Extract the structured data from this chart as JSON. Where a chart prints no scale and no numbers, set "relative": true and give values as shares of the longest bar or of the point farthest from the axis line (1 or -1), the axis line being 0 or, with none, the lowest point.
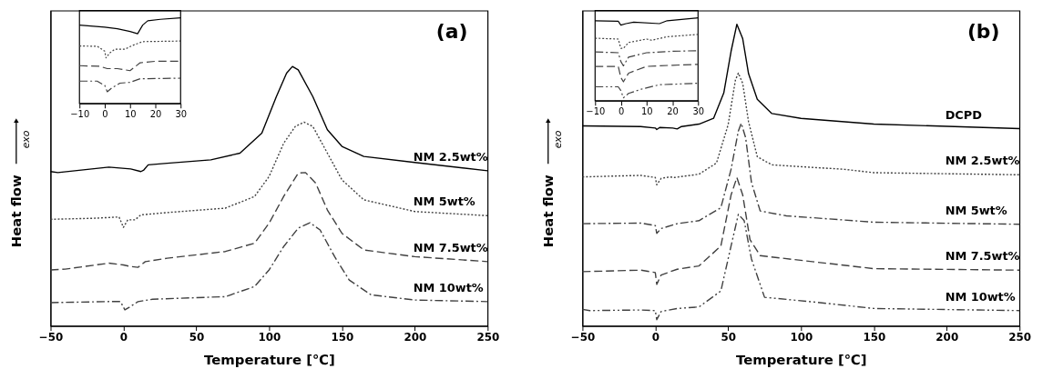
{
  "chart_data": [
    {
      "type": "line",
      "relative": true,
      "xlabel": "Temperature [℃]",
      "ylabel": "Heat flow",
      "xlim": [
        -50,
        250
      ],
      "xticks": [
        -50,
        0,
        50,
        100,
        150,
        200,
        250
      ],
      "annotations": [
        "(a)",
        "exo"
      ],
      "series": [
        {
          "name": "NM 2.5wt%",
          "color": "#000000",
          "line_style": "solid",
          "x": [
            -50,
            -45,
            -10,
            5,
            12,
            14,
            17,
            30,
            60,
            80,
            95,
            105,
            112,
            116,
            120,
            130,
            140,
            150,
            165,
            200,
            250
          ],
          "values": [
            0.595,
            0.591,
            0.612,
            0.605,
            0.595,
            0.601,
            0.621,
            0.627,
            0.64,
            0.666,
            0.743,
            0.884,
            0.974,
            1.0,
            0.987,
            0.884,
            0.756,
            0.692,
            0.653,
            0.63,
            0.598
          ]
        },
        {
          "name": "NM 5wt%",
          "color": "#404040",
          "line_style": "dotted",
          "x": [
            -50,
            -20,
            -3,
            0,
            3,
            8,
            12,
            30,
            70,
            90,
            100,
            110,
            118,
            124,
            130,
            140,
            150,
            165,
            200,
            250
          ],
          "values": [
            0.411,
            0.415,
            0.42,
            0.38,
            0.409,
            0.409,
            0.428,
            0.437,
            0.454,
            0.499,
            0.576,
            0.704,
            0.769,
            0.785,
            0.769,
            0.666,
            0.563,
            0.486,
            0.441,
            0.425
          ]
        },
        {
          "name": "NM 7.5wt%",
          "color": "#404040",
          "line_style": "dashed",
          "x": [
            -50,
            -40,
            -10,
            0,
            5,
            10,
            15,
            30,
            70,
            90,
            100,
            110,
            120,
            125,
            132,
            140,
            150,
            165,
            200,
            250
          ],
          "values": [
            0.216,
            0.219,
            0.242,
            0.235,
            0.229,
            0.226,
            0.248,
            0.261,
            0.287,
            0.319,
            0.396,
            0.499,
            0.589,
            0.591,
            0.55,
            0.447,
            0.357,
            0.293,
            0.267,
            0.248
          ]
        },
        {
          "name": "NM 10wt%",
          "color": "#404040",
          "line_style": "dashdot",
          "x": [
            -50,
            -10,
            -2,
            1,
            4,
            10,
            20,
            70,
            90,
            100,
            110,
            120,
            128,
            135,
            145,
            155,
            170,
            200,
            250
          ],
          "values": [
            0.09,
            0.094,
            0.094,
            0.062,
            0.072,
            0.094,
            0.103,
            0.113,
            0.152,
            0.216,
            0.306,
            0.377,
            0.398,
            0.37,
            0.267,
            0.177,
            0.12,
            0.1,
            0.094
          ]
        }
      ]
    },
    {
      "type": "line",
      "relative": true,
      "xlim": [
        -10,
        30
      ],
      "xticks": [
        -10,
        0,
        10,
        20,
        30
      ],
      "series": [
        {
          "color": "#000000",
          "line_style": "solid",
          "x": [
            -10,
            0,
            5,
            10,
            13,
            15,
            17,
            22,
            30
          ],
          "values": [
            0.915,
            0.892,
            0.872,
            0.841,
            0.814,
            0.915,
            0.966,
            0.983,
            1.0
          ]
        },
        {
          "color": "#404040",
          "line_style": "dotted",
          "x": [
            -10,
            -3,
            0,
            0.5,
            2,
            4,
            8,
            11,
            15,
            30
          ],
          "values": [
            0.671,
            0.668,
            0.61,
            0.532,
            0.59,
            0.634,
            0.634,
            0.678,
            0.722,
            0.729
          ]
        },
        {
          "color": "#404040",
          "line_style": "dashed",
          "x": [
            -10,
            -2,
            1,
            5,
            10,
            14,
            20,
            30
          ],
          "values": [
            0.441,
            0.434,
            0.407,
            0.407,
            0.383,
            0.475,
            0.492,
            0.492
          ]
        },
        {
          "color": "#404040",
          "line_style": "dashdot",
          "x": [
            -10,
            -3,
            0,
            1,
            3,
            6,
            10,
            14,
            30
          ],
          "values": [
            0.261,
            0.261,
            0.21,
            0.136,
            0.186,
            0.237,
            0.247,
            0.288,
            0.295
          ]
        }
      ]
    },
    {
      "type": "line",
      "relative": true,
      "xlabel": "Temperature [℃]",
      "ylabel": "Heat flow",
      "xlim": [
        -50,
        250
      ],
      "xticks": [
        -50,
        0,
        50,
        100,
        150,
        200,
        250
      ],
      "annotations": [
        "(b)",
        "exo"
      ],
      "series": [
        {
          "name": "DCPD",
          "color": "#000000",
          "line_style": "solid",
          "x": [
            -50,
            -10,
            0,
            1,
            3,
            12,
            15,
            18,
            30,
            40,
            47,
            52,
            56,
            60,
            64,
            70,
            80,
            100,
            150,
            250
          ],
          "values": [
            0.663,
            0.661,
            0.656,
            0.651,
            0.658,
            0.656,
            0.653,
            0.661,
            0.669,
            0.688,
            0.772,
            0.91,
            1.0,
            0.952,
            0.836,
            0.751,
            0.704,
            0.688,
            0.669,
            0.654
          ]
        },
        {
          "name": "NM 2.5wt%",
          "color": "#404040",
          "line_style": "dotted",
          "x": [
            -50,
            -10,
            0,
            1,
            4,
            10,
            13,
            30,
            42,
            50,
            55,
            57,
            60,
            64,
            70,
            80,
            130,
            150,
            250
          ],
          "values": [
            0.494,
            0.499,
            0.492,
            0.468,
            0.489,
            0.494,
            0.492,
            0.503,
            0.54,
            0.667,
            0.815,
            0.838,
            0.804,
            0.677,
            0.561,
            0.534,
            0.519,
            0.508,
            0.501
          ]
        },
        {
          "name": "NM 5wt%",
          "color": "#404040",
          "line_style": "dashdot",
          "x": [
            -50,
            -10,
            0,
            1,
            4,
            15,
            30,
            45,
            52,
            57,
            59,
            62,
            66,
            72,
            90,
            150,
            250
          ],
          "values": [
            0.339,
            0.341,
            0.333,
            0.307,
            0.323,
            0.339,
            0.349,
            0.392,
            0.519,
            0.646,
            0.672,
            0.624,
            0.476,
            0.381,
            0.365,
            0.344,
            0.337
          ]
        },
        {
          "name": "NM 7.5wt%",
          "color": "#404040",
          "line_style": "dashed",
          "x": [
            -50,
            -10,
            0,
            1,
            4,
            15,
            30,
            45,
            52,
            56,
            60,
            65,
            72,
            110,
            150,
            250
          ],
          "values": [
            0.18,
            0.185,
            0.177,
            0.138,
            0.169,
            0.188,
            0.199,
            0.265,
            0.434,
            0.492,
            0.434,
            0.286,
            0.233,
            0.212,
            0.19,
            0.185
          ]
        },
        {
          "name": "NM 10wt%",
          "color": "#404040",
          "line_style": "dashdotdot",
          "x": [
            -50,
            -45,
            -10,
            0,
            1,
            4,
            15,
            30,
            45,
            52,
            57,
            61,
            66,
            75,
            110,
            150,
            250
          ],
          "values": [
            0.055,
            0.051,
            0.053,
            0.051,
            0.021,
            0.048,
            0.058,
            0.063,
            0.116,
            0.265,
            0.37,
            0.349,
            0.222,
            0.095,
            0.079,
            0.058,
            0.051
          ]
        }
      ]
    },
    {
      "type": "line",
      "relative": true,
      "xlim": [
        -10,
        30
      ],
      "xticks": [
        -10,
        0,
        10,
        20,
        30
      ],
      "series": [
        {
          "color": "#000000",
          "line_style": "solid",
          "x": [
            -10,
            -1,
            0,
            2,
            5,
            15,
            18,
            30
          ],
          "values": [
            0.965,
            0.958,
            0.912,
            0.93,
            0.947,
            0.93,
            0.965,
            1.0
          ]
        },
        {
          "color": "#404040",
          "line_style": "dotted",
          "x": [
            -10,
            -1,
            0,
            1,
            3,
            10,
            12,
            18,
            30
          ],
          "values": [
            0.754,
            0.744,
            0.632,
            0.632,
            0.702,
            0.744,
            0.73,
            0.772,
            0.8
          ]
        },
        {
          "color": "#404040",
          "line_style": "dashdot",
          "x": [
            -10,
            -1,
            0,
            1,
            3,
            10,
            20,
            30
          ],
          "values": [
            0.589,
            0.579,
            0.474,
            0.421,
            0.526,
            0.579,
            0.596,
            0.604
          ]
        },
        {
          "color": "#404040",
          "line_style": "dashed",
          "x": [
            -10,
            -1,
            0,
            1,
            3,
            10,
            20,
            30
          ],
          "values": [
            0.414,
            0.414,
            0.281,
            0.228,
            0.333,
            0.414,
            0.428,
            0.439
          ]
        },
        {
          "color": "#404040",
          "line_style": "dashdotdot",
          "x": [
            -10,
            -1,
            0,
            1,
            3,
            8,
            15,
            30
          ],
          "values": [
            0.168,
            0.168,
            0.123,
            0.035,
            0.088,
            0.14,
            0.193,
            0.211
          ]
        }
      ]
    }
  ]
}
